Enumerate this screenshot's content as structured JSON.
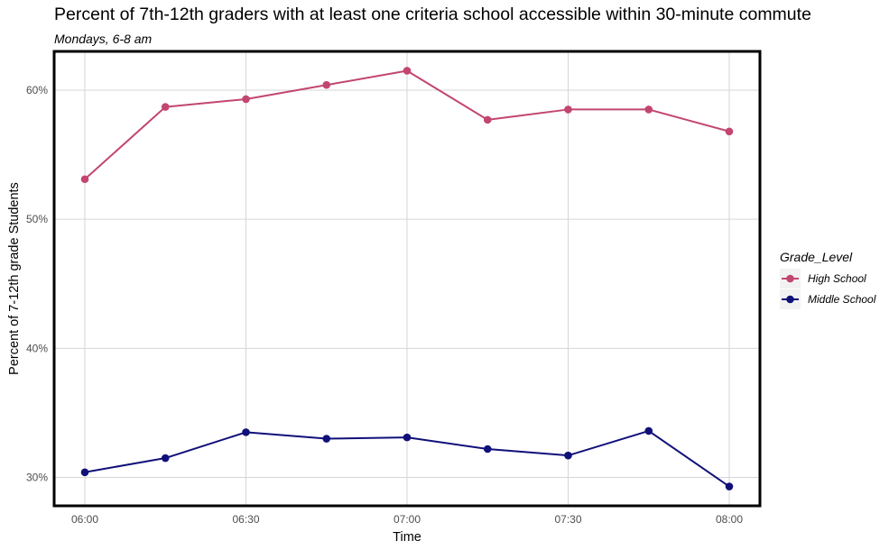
{
  "chart_data": {
    "type": "line",
    "title": "Percent of 7th-12th graders with at least one criteria school accessible within 30-minute commute",
    "subtitle": "Mondays, 6-8 am",
    "xlabel": "Time",
    "ylabel": "Percent of 7-12th grade Students",
    "x": [
      "06:00",
      "06:15",
      "06:30",
      "06:45",
      "07:00",
      "07:15",
      "07:30",
      "07:45",
      "08:00"
    ],
    "x_ticks": [
      "06:00",
      "06:30",
      "07:00",
      "07:30",
      "08:00"
    ],
    "y_ticks": [
      30,
      40,
      50,
      60
    ],
    "y_tick_labels": [
      "30%",
      "40%",
      "50%",
      "60%"
    ],
    "ylim": [
      27.8,
      63.0
    ],
    "grid": true,
    "legend": {
      "title": "Grade_Level",
      "position": "right"
    },
    "series": [
      {
        "name": "High School",
        "color": "#c2466f",
        "values": [
          53.1,
          58.7,
          59.3,
          60.4,
          61.5,
          57.7,
          58.5,
          58.5,
          56.8
        ]
      },
      {
        "name": "Middle School",
        "color": "#10107a",
        "values": [
          30.4,
          31.5,
          33.5,
          33.0,
          33.1,
          32.2,
          31.7,
          33.6,
          29.3
        ]
      }
    ]
  }
}
